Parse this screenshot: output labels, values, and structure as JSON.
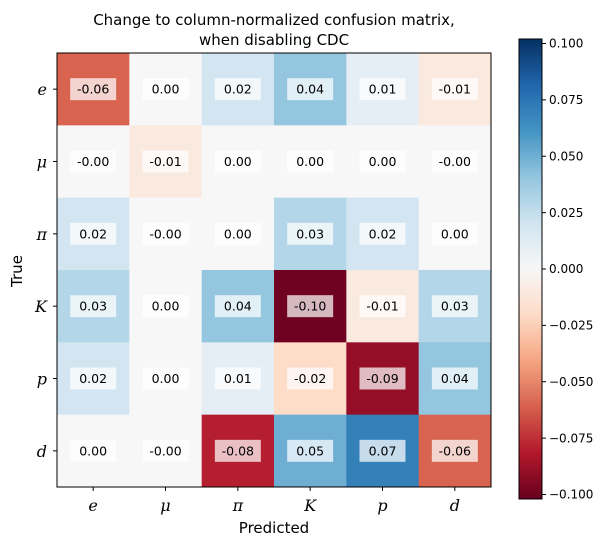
{
  "chart_data": {
    "type": "heatmap",
    "title": [
      "Change to column-normalized confusion matrix,",
      "when disabling CDC"
    ],
    "xlabel": "Predicted",
    "ylabel": "True",
    "x_categories": [
      "e",
      "μ",
      "π",
      "K",
      "p",
      "d"
    ],
    "y_categories": [
      "e",
      "μ",
      "π",
      "K",
      "p",
      "d"
    ],
    "values": [
      [
        -0.06,
        0.0,
        0.02,
        0.04,
        0.01,
        -0.01
      ],
      [
        -0.0,
        -0.01,
        0.0,
        0.0,
        0.0,
        -0.0
      ],
      [
        0.02,
        -0.0,
        0.0,
        0.03,
        0.02,
        0.0
      ],
      [
        0.03,
        0.0,
        0.04,
        -0.1,
        -0.01,
        0.03
      ],
      [
        0.02,
        0.0,
        0.01,
        -0.02,
        -0.09,
        0.04
      ],
      [
        0.0,
        -0.0,
        -0.08,
        0.05,
        0.07,
        -0.06
      ]
    ],
    "cell_labels": [
      [
        "-0.06",
        "0.00",
        "0.02",
        "0.04",
        "0.01",
        "-0.01"
      ],
      [
        "-0.00",
        "-0.01",
        "0.00",
        "0.00",
        "0.00",
        "-0.00"
      ],
      [
        "0.02",
        "-0.00",
        "0.00",
        "0.03",
        "0.02",
        "0.00"
      ],
      [
        "0.03",
        "0.00",
        "0.04",
        "-0.10",
        "-0.01",
        "0.03"
      ],
      [
        "0.02",
        "0.00",
        "0.01",
        "-0.02",
        "-0.09",
        "0.04"
      ],
      [
        "0.00",
        "-0.00",
        "-0.08",
        "0.05",
        "0.07",
        "-0.06"
      ]
    ],
    "colormap": "RdBu",
    "vmin": -0.102,
    "vmax": 0.102,
    "colorbar": {
      "ticks": [
        0.1,
        0.075,
        0.05,
        0.025,
        0.0,
        -0.025,
        -0.05,
        -0.075,
        -0.1
      ],
      "tick_labels": [
        "0.100",
        "0.075",
        "0.050",
        "0.025",
        "0.000",
        "−0.025",
        "−0.050",
        "−0.075",
        "−0.100"
      ],
      "placement": "right"
    },
    "grid": false
  }
}
